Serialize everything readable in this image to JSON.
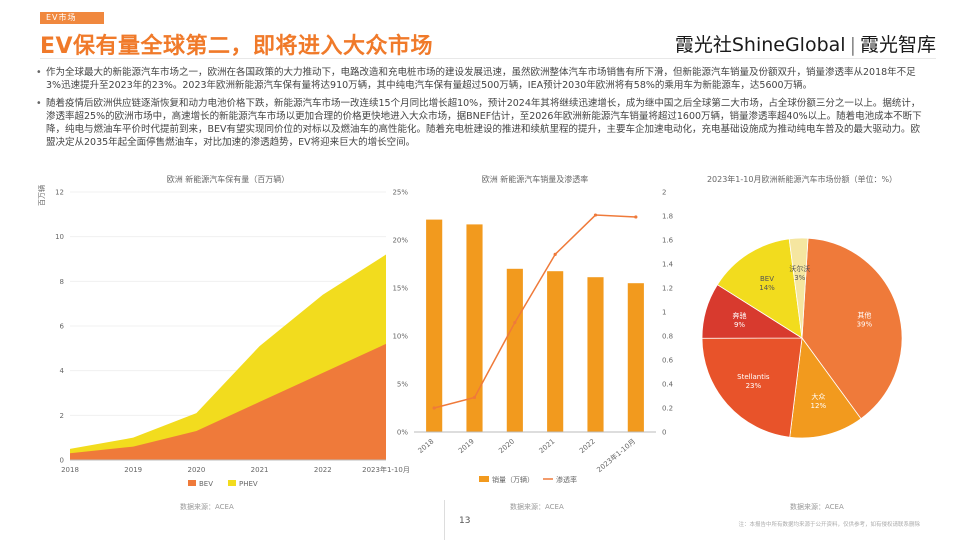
{
  "header": {
    "tag": "EV市场",
    "title": "EV保有量全球第二，即将进入大众市场",
    "brand_left": "霞光社ShineGlobal",
    "brand_sep": "|",
    "brand_right": "霞光智库"
  },
  "bullets": [
    "作为全球最大的新能源汽车市场之一，欧洲在各国政策的大力推动下，电路改造和充电桩市场的建设发展迅速，虽然欧洲整体汽车市场销售有所下滑，但新能源汽车销量及份额双升，销量渗透率从2018年不足3%迅速提升至2023年的23%。2023年欧洲新能源汽车保有量将达910万辆，其中纯电汽车保有量超过500万辆，IEA预计2030年欧洲将有58%的乘用车为新能源车，达5600万辆。",
    "随着疫情后欧洲供应链逐渐恢复和动力电池价格下跌，新能源汽车市场一改连续15个月同比增长超10%，预计2024年其将继续迅速增长，成为继中国之后全球第二大市场，占全球份额三分之一以上。据统计，渗透率超25%的欧洲市场中，高速增长的新能源汽车市场以更加合理的价格更快地进入大众市场，据BNEF估计，至2026年欧洲新能源汽车销量将超过1600万辆，销量渗透率超40%以上。随着电池成本不断下降，纯电与燃油车平价时代提前到来，BEV有望实现同价位的对标以及燃油车的高性能化。随着充电桩建设的推进和续航里程的提升，主要车企加速电动化，充电基础设施成为推动纯电车普及的最大驱动力。欧盟决定从2035年起全面停售燃油车，对比加速的渗透趋势，EV将迎来巨大的增长空间。"
  ],
  "footer": {
    "page_number": "13",
    "footnote": "注：本报告中所有数据均来源于公开资料，仅供参考，如有侵权请联系删除"
  },
  "chart_data": [
    {
      "type": "area",
      "title": "欧洲 新能源汽车保有量（百万辆）",
      "x": [
        "2018",
        "2019",
        "2020",
        "2021",
        "2022",
        "2023年1-10月"
      ],
      "series": [
        {
          "name": "BEV",
          "values": [
            0.3,
            0.6,
            1.3,
            2.6,
            3.9,
            5.2
          ],
          "color": "#ef7a3a"
        },
        {
          "name": "PHEV",
          "values": [
            0.2,
            0.4,
            0.8,
            2.5,
            3.5,
            4.0
          ],
          "color": "#f2dc1e"
        }
      ],
      "ylim": [
        0,
        12
      ],
      "yticks": [
        "0",
        "2",
        "4",
        "6",
        "8",
        "10",
        "12"
      ],
      "ylabel": "百万辆",
      "legend": [
        "BEV",
        "PHEV"
      ],
      "source": "数据来源：ACEA"
    },
    {
      "type": "bar",
      "title": "欧洲 新能源汽车销量及渗透率",
      "categories": [
        "2018",
        "2019",
        "2020",
        "2021",
        "2022",
        "2023年1-10月"
      ],
      "series": [
        {
          "name": "销量（万辆）",
          "values": [
            1.77,
            1.73,
            1.36,
            1.34,
            1.29,
            1.24
          ],
          "color": "#f29a1e"
        },
        {
          "name": "渗透率",
          "values": [
            2.5,
            3.6,
            11.4,
            18.5,
            22.6,
            22.4
          ],
          "color": "#ef7a3a"
        }
      ],
      "left_yticks": [
        "0%",
        "5%",
        "10%",
        "15%",
        "20%",
        "25%"
      ],
      "right_yticks": [
        "0",
        "0.2",
        "0.4",
        "0.6",
        "0.8",
        "1",
        "1.2",
        "1.4",
        "1.6",
        "1.8",
        "2"
      ],
      "source": "数据来源：ACEA"
    },
    {
      "type": "pie",
      "title": "2023年1-10月欧洲新能源汽车市场份额（单位：%）",
      "slices": [
        {
          "label": "其他",
          "value": "39%",
          "color": "#ef7a3a"
        },
        {
          "label": "大众",
          "value": "12%",
          "color": "#f29a1e"
        },
        {
          "label": "Stellantis",
          "value": "23%",
          "color": "#e8532a"
        },
        {
          "label": "奔驰",
          "value": "9%",
          "color": "#d83a2e"
        },
        {
          "label": "BEV",
          "value": "14%",
          "color": "#f2dc1e"
        },
        {
          "label": "沃尔沃",
          "value": "3%",
          "color": "#f5e6a0"
        }
      ],
      "source": "数据来源：ACEA"
    }
  ]
}
